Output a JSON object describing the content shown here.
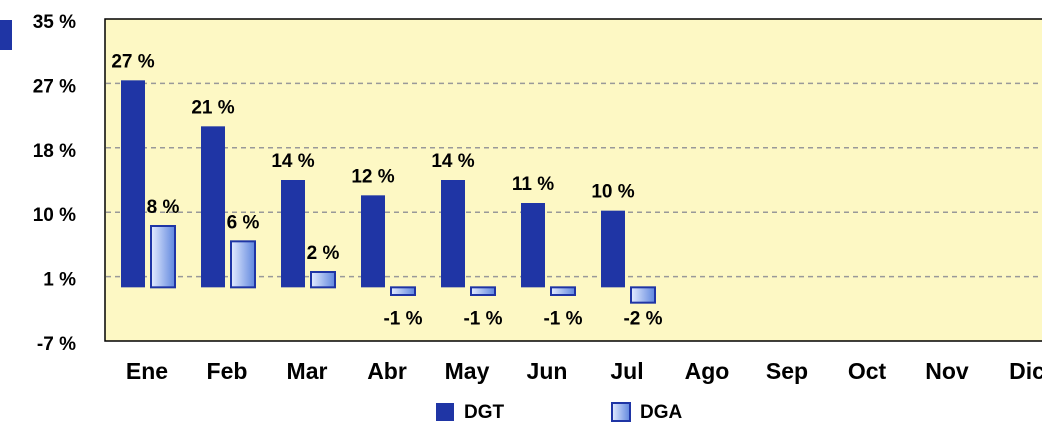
{
  "chart_data": {
    "type": "bar",
    "categories": [
      "Ene",
      "Feb",
      "Mar",
      "Abr",
      "May",
      "Jun",
      "Jul",
      "Ago",
      "Sep",
      "Oct",
      "Nov",
      "Dic"
    ],
    "series": [
      {
        "name": "DGT",
        "color": "#1f35a5",
        "values": [
          27,
          21,
          14,
          12,
          14,
          11,
          10,
          null,
          null,
          null,
          null,
          null
        ],
        "value_labels": [
          "27 %",
          "21 %",
          "14 %",
          "12 %",
          "14 %",
          "11 %",
          "10 %",
          null,
          null,
          null,
          null,
          null
        ]
      },
      {
        "name": "DGA",
        "color": "#7f9fe8",
        "values": [
          8,
          6,
          2,
          -1,
          -1,
          -1,
          -2,
          null,
          null,
          null,
          null,
          null
        ],
        "value_labels": [
          "8 %",
          "6 %",
          "2 %",
          "-1 %",
          "-1 %",
          "-1 %",
          "-2 %",
          null,
          null,
          null,
          null,
          null
        ]
      }
    ],
    "ylim": [
      -7,
      35
    ],
    "yticks": [
      {
        "value": -7,
        "label": "-7 %"
      },
      {
        "value": 1.4,
        "label": "1 %"
      },
      {
        "value": 9.8,
        "label": "10 %"
      },
      {
        "value": 18.2,
        "label": "18 %"
      },
      {
        "value": 26.6,
        "label": "27 %"
      },
      {
        "value": 35,
        "label": "35 %"
      }
    ],
    "grid": true,
    "legend": "bottom"
  }
}
